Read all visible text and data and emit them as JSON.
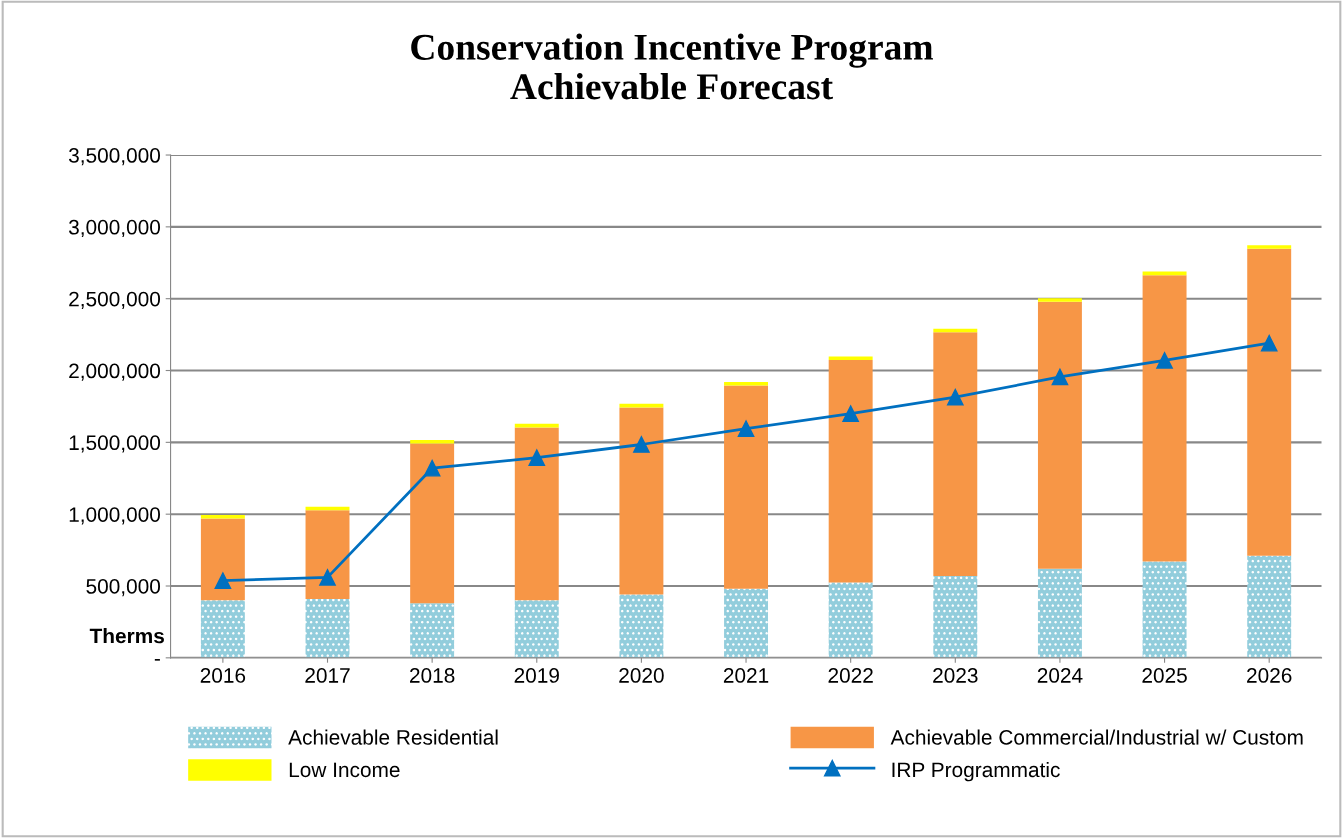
{
  "chart_data": {
    "type": "bar",
    "title": "Conservation Incentive Program\nAchievable Forecast",
    "ylabel": "Therms",
    "stacked": true,
    "categories": [
      "2016",
      "2017",
      "2018",
      "2019",
      "2020",
      "2021",
      "2022",
      "2023",
      "2024",
      "2025",
      "2026"
    ],
    "series": [
      {
        "name": "Achievable Residential",
        "color": "#92cddc",
        "values": [
          400000,
          410000,
          380000,
          400000,
          440000,
          480000,
          525000,
          570000,
          620000,
          670000,
          710000
        ]
      },
      {
        "name": "Achievable Commercial/Industrial w/ Custom",
        "color": "#f79646",
        "values": [
          570000,
          617000,
          1112000,
          1204000,
          1303000,
          1415000,
          1548000,
          1696000,
          1858000,
          1994000,
          2137000
        ]
      },
      {
        "name": "Low Income",
        "color": "#ffff00",
        "values": [
          25000,
          25000,
          25000,
          25000,
          25000,
          25000,
          25000,
          25000,
          25000,
          25000,
          25000
        ]
      },
      {
        "name": "IRP Programmatic",
        "type": "line",
        "color": "#0070c0",
        "marker": "triangle",
        "values": [
          537000,
          560000,
          1320000,
          1393000,
          1485000,
          1595000,
          1700000,
          1815000,
          1955000,
          2070000,
          2190000
        ]
      }
    ],
    "ylim": [
      0,
      3500000
    ],
    "yticks": [
      {
        "value": 0,
        "label": "-"
      },
      {
        "value": 500000,
        "label": "500,000"
      },
      {
        "value": 1000000,
        "label": "1,000,000"
      },
      {
        "value": 1500000,
        "label": "1,500,000"
      },
      {
        "value": 2000000,
        "label": "2,000,000"
      },
      {
        "value": 2500000,
        "label": "2,500,000"
      },
      {
        "value": 3000000,
        "label": "3,000,000"
      },
      {
        "value": 3500000,
        "label": "3,500,000"
      }
    ],
    "grid": "y",
    "legend": "bottom"
  }
}
